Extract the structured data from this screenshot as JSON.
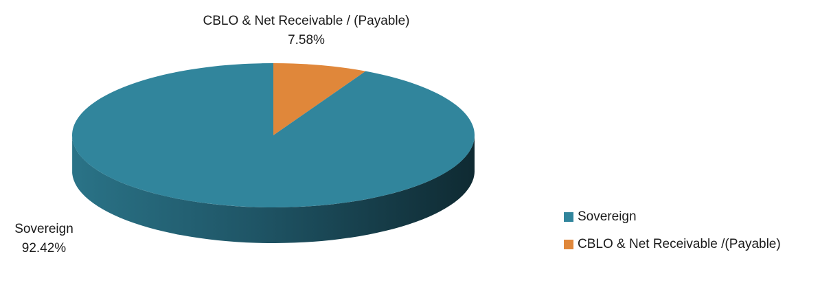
{
  "chart_data": {
    "type": "pie",
    "style": "3d",
    "slices": [
      {
        "label": "Sovereign",
        "legend_label": "Sovereign",
        "value": 92.42,
        "value_label": "92.42%",
        "color": "#31859C",
        "side_color": "#235E6F",
        "side_dark": "#0F2A32"
      },
      {
        "label": "CBLO & Net Receivable / (Payable)",
        "legend_label": "CBLO & Net Receivable /(Payable)",
        "value": 7.58,
        "value_label": "7.58%",
        "color": "#E0873A",
        "side_color": "#A35F25",
        "side_dark": "#6B3D16"
      }
    ],
    "legend_position": "right"
  }
}
